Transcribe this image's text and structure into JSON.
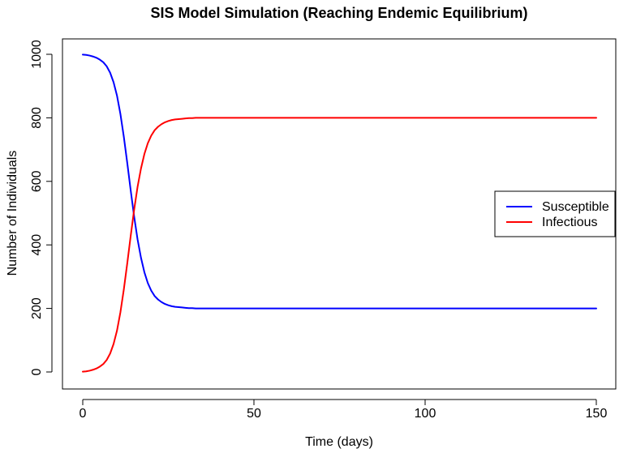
{
  "chart_data": {
    "type": "line",
    "title": "SIS Model Simulation (Reaching Endemic Equilibrium)",
    "xlabel": "Time (days)",
    "ylabel": "Number of Individuals",
    "xlim": [
      0,
      150
    ],
    "ylim": [
      0,
      1000
    ],
    "xticks": [
      0,
      50,
      100,
      150
    ],
    "yticks": [
      0,
      200,
      400,
      600,
      800,
      1000
    ],
    "grid": false,
    "legend_position": "right",
    "series": [
      {
        "name": "Susceptible",
        "color": "#0000ff",
        "x": [
          0,
          1,
          2,
          3,
          4,
          5,
          6,
          7,
          8,
          9,
          10,
          11,
          12,
          13,
          14,
          15,
          16,
          17,
          18,
          19,
          20,
          21,
          22,
          23,
          24,
          25,
          26,
          27,
          28,
          29,
          30,
          31,
          32,
          33,
          34,
          35,
          40,
          50,
          75,
          100,
          125,
          150
        ],
        "values": [
          999,
          998,
          996,
          993,
          989,
          983,
          975,
          962,
          942,
          912,
          870,
          812,
          740,
          658,
          572,
          490,
          418,
          360,
          314,
          280,
          256,
          239,
          228,
          220,
          214,
          210,
          207,
          205,
          204,
          203,
          202,
          201,
          201,
          200,
          200,
          200,
          200,
          200,
          200,
          200,
          200,
          200
        ]
      },
      {
        "name": "Infectious",
        "color": "#ff0000",
        "x": [
          0,
          1,
          2,
          3,
          4,
          5,
          6,
          7,
          8,
          9,
          10,
          11,
          12,
          13,
          14,
          15,
          16,
          17,
          18,
          19,
          20,
          21,
          22,
          23,
          24,
          25,
          26,
          27,
          28,
          29,
          30,
          31,
          32,
          33,
          34,
          35,
          40,
          50,
          75,
          100,
          125,
          150
        ],
        "values": [
          1,
          2,
          4,
          7,
          11,
          17,
          25,
          38,
          58,
          88,
          130,
          188,
          260,
          342,
          428,
          510,
          582,
          640,
          686,
          720,
          744,
          761,
          772,
          780,
          786,
          790,
          793,
          795,
          796,
          797,
          798,
          799,
          799,
          800,
          800,
          800,
          800,
          800,
          800,
          800,
          800,
          800
        ]
      }
    ]
  }
}
